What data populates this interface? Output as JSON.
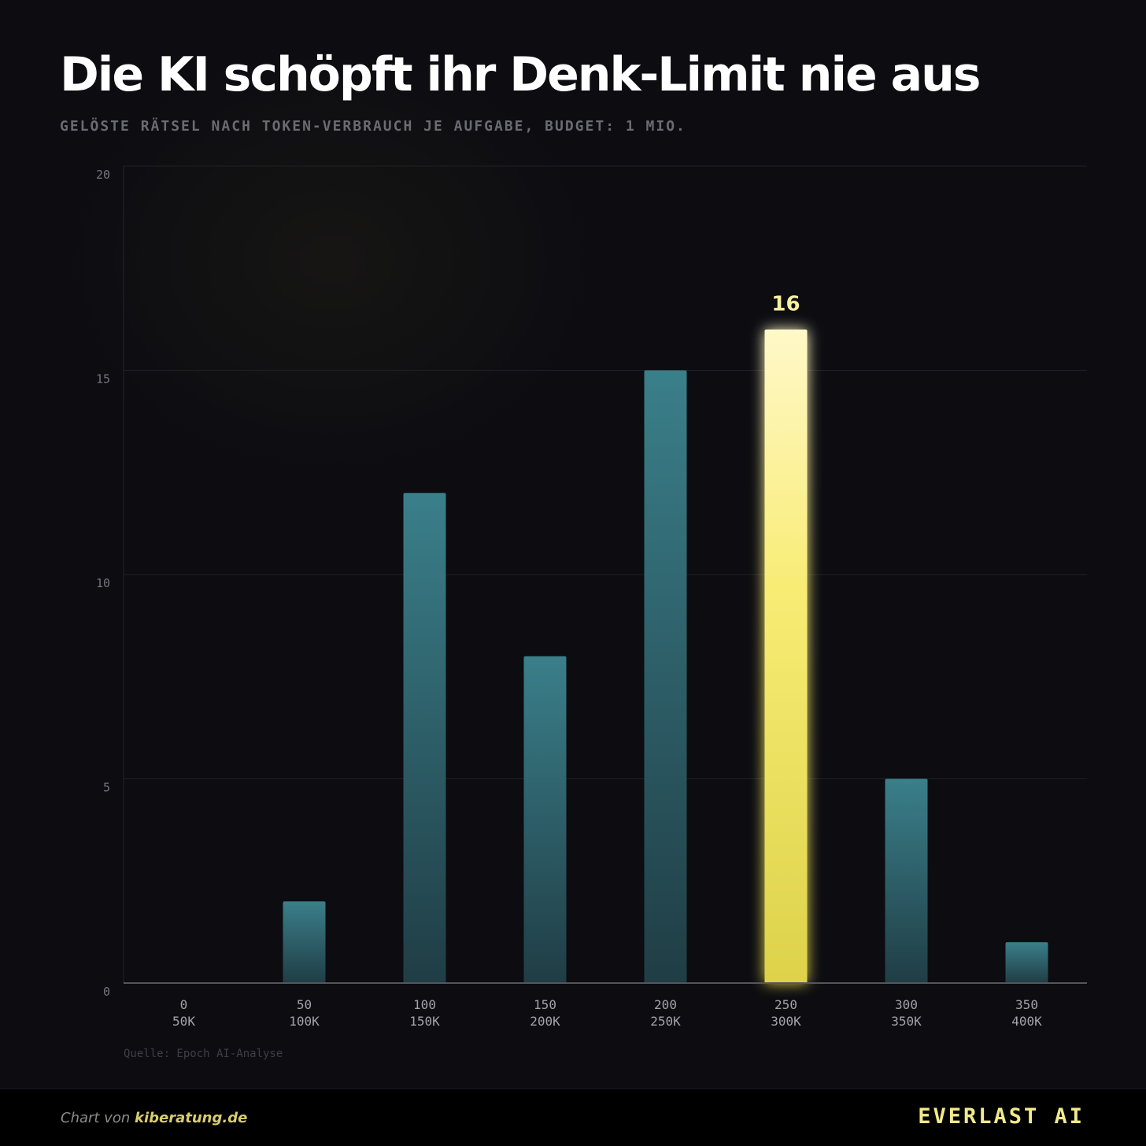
{
  "title": "Die KI schöpft ihr Denk-Limit nie aus",
  "subtitle": "GELÖSTE RÄTSEL NACH TOKEN-VERBRAUCH JE AUFGABE, BUDGET: 1 MIO.",
  "source": "Quelle: Epoch AI-Analyse",
  "footer": {
    "credit_prefix": "Chart von ",
    "credit_site": "kiberatung.de",
    "brand": "EVERLAST AI"
  },
  "colors": {
    "bar_top": "#3a7f8a",
    "bar_bottom": "#203d45",
    "highlight_top": "#fff8c8",
    "highlight_bottom": "#ddd24a",
    "highlight_label": "#f7eea0",
    "axis_text": "#75757c",
    "grid": "#1f1f27"
  },
  "chart_data": {
    "type": "bar",
    "categories": [
      [
        "0",
        "50K"
      ],
      [
        "50",
        "100K"
      ],
      [
        "100",
        "150K"
      ],
      [
        "150",
        "200K"
      ],
      [
        "200",
        "250K"
      ],
      [
        "250",
        "300K"
      ],
      [
        "300",
        "350K"
      ],
      [
        "350",
        "400K"
      ]
    ],
    "values": [
      0,
      2,
      12,
      8,
      15,
      16,
      5,
      1
    ],
    "highlight_index": 5,
    "data_labels": {
      "5": "16"
    },
    "yticks": [
      0,
      5,
      10,
      15,
      20
    ],
    "ylim": [
      0,
      20
    ],
    "grid": true
  }
}
